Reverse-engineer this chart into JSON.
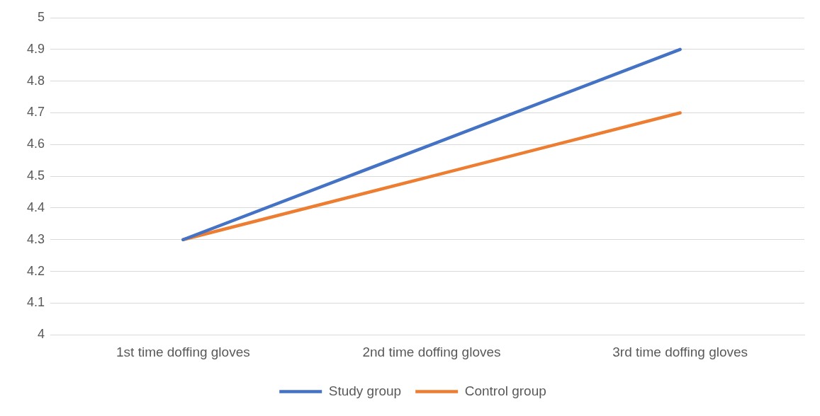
{
  "chart_data": {
    "type": "line",
    "categories": [
      "1st time doffing gloves",
      "2nd time doffing gloves",
      "3rd time doffing gloves"
    ],
    "series": [
      {
        "name": "Study group",
        "color": "#4472c4",
        "values": [
          4.3,
          4.6,
          4.9
        ]
      },
      {
        "name": "Control group",
        "color": "#ed7d31",
        "values": [
          4.3,
          4.5,
          4.7
        ]
      }
    ],
    "ylim": [
      4,
      5
    ],
    "yticks": [
      4,
      4.1,
      4.2,
      4.3,
      4.4,
      4.5,
      4.6,
      4.7,
      4.8,
      4.9,
      5
    ],
    "grid": "y",
    "legend": "bottom",
    "marker": "none",
    "line_style": "solid"
  }
}
